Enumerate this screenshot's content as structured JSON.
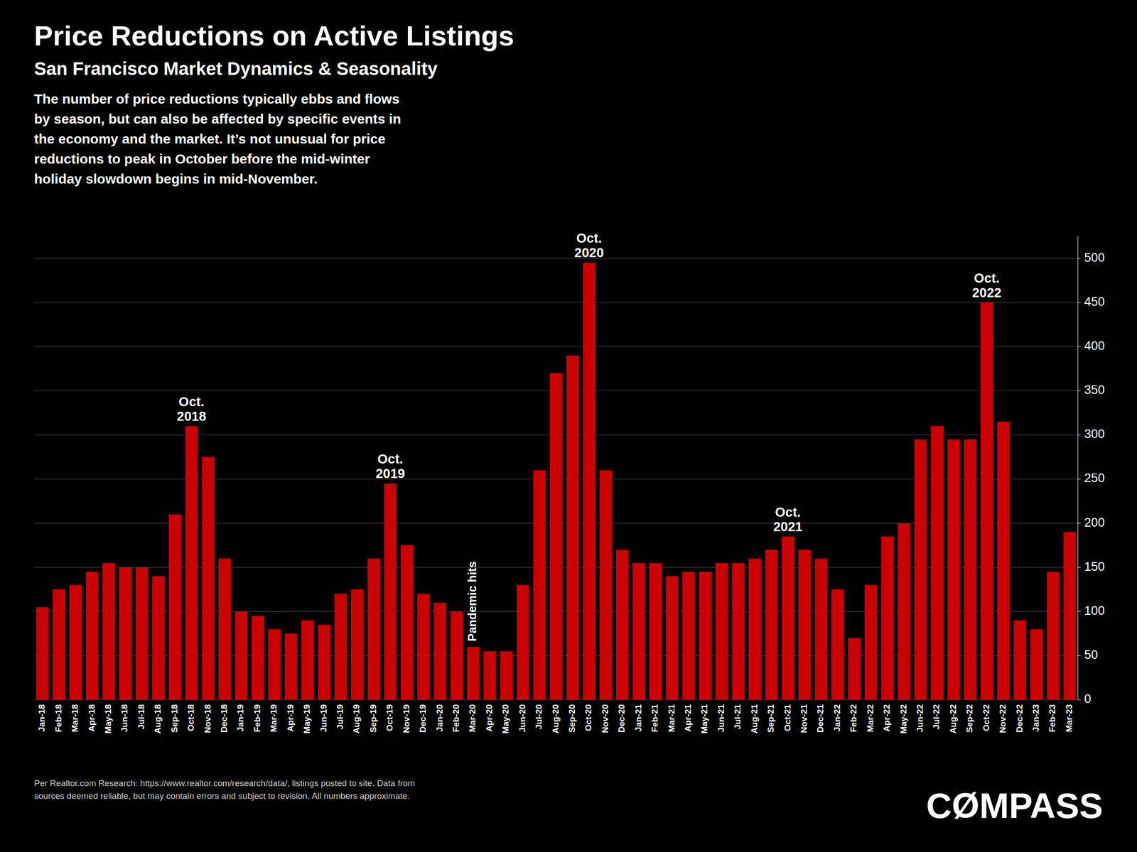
{
  "chart_data": {
    "type": "bar",
    "title": "Price Reductions on Active Listings",
    "subtitle": "San Francisco Market Dynamics & Seasonality",
    "description": "The number of price reductions typically ebbs and flows\nby season, but can also be affected by specific events in\nthe economy and the market. It’s not unusual for price\nreductions to peak in October before the mid-winter\nholiday slowdown begins in mid-November.",
    "footnote": "Per Realtor.com Research:  https://www.realtor.com/research/data/, listings posted to site. Data from\nsources deemed reliable, but may contain errors and subject to revision. All numbers approximate.",
    "logo": "CØMPASS",
    "categories": [
      "Jan-18",
      "Feb-18",
      "Mar-18",
      "Apr-18",
      "May-18",
      "Jun-18",
      "Jul-18",
      "Aug-18",
      "Sep-18",
      "Oct-18",
      "Nov-18",
      "Dec-18",
      "Jan-19",
      "Feb-19",
      "Mar-19",
      "Apr-19",
      "May-19",
      "Jun-19",
      "Jul-19",
      "Aug-19",
      "Sep-19",
      "Oct-19",
      "Nov-19",
      "Dec-19",
      "Jan-20",
      "Feb-20",
      "Mar-20",
      "Apr-20",
      "May-20",
      "Jun-20",
      "Jul-20",
      "Aug-20",
      "Sep-20",
      "Oct-20",
      "Nov-20",
      "Dec-20",
      "Jan-21",
      "Feb-21",
      "Mar-21",
      "Apr-21",
      "May-21",
      "Jun-21",
      "Jul-21",
      "Aug-21",
      "Sep-21",
      "Oct-21",
      "Nov-21",
      "Dec-21",
      "Jan-22",
      "Feb-22",
      "Mar-22",
      "Apr-22",
      "May-22",
      "Jun-22",
      "Jul-22",
      "Aug-22",
      "Sep-22",
      "Oct-22",
      "Nov-22",
      "Dec-22",
      "Jan-23",
      "Feb-23",
      "Mar-23"
    ],
    "values": [
      105,
      125,
      130,
      145,
      155,
      150,
      150,
      140,
      210,
      310,
      275,
      160,
      100,
      95,
      80,
      75,
      90,
      85,
      120,
      125,
      160,
      245,
      175,
      120,
      110,
      100,
      60,
      55,
      55,
      130,
      260,
      370,
      390,
      495,
      260,
      170,
      155,
      155,
      140,
      145,
      145,
      155,
      155,
      160,
      170,
      185,
      170,
      160,
      125,
      70,
      130,
      185,
      200,
      295,
      310,
      295,
      295,
      450,
      315,
      90,
      80,
      145,
      190
    ],
    "color": "#cc0000",
    "annotations": [
      {
        "text": "Oct.\n2018",
        "category": "Oct-18"
      },
      {
        "text": "Oct.\n2019",
        "category": "Oct-19"
      },
      {
        "text": "Oct.\n2020",
        "category": "Oct-20"
      },
      {
        "text": "Oct.\n2021",
        "category": "Oct-21"
      },
      {
        "text": "Oct.\n2022",
        "category": "Oct-22"
      },
      {
        "text": "Pandemic hits",
        "category": "Mar-20"
      }
    ],
    "ylim": [
      0,
      525
    ],
    "yticks": [
      0,
      50,
      100,
      150,
      200,
      250,
      300,
      350,
      400,
      450,
      500
    ],
    "grid": true
  }
}
